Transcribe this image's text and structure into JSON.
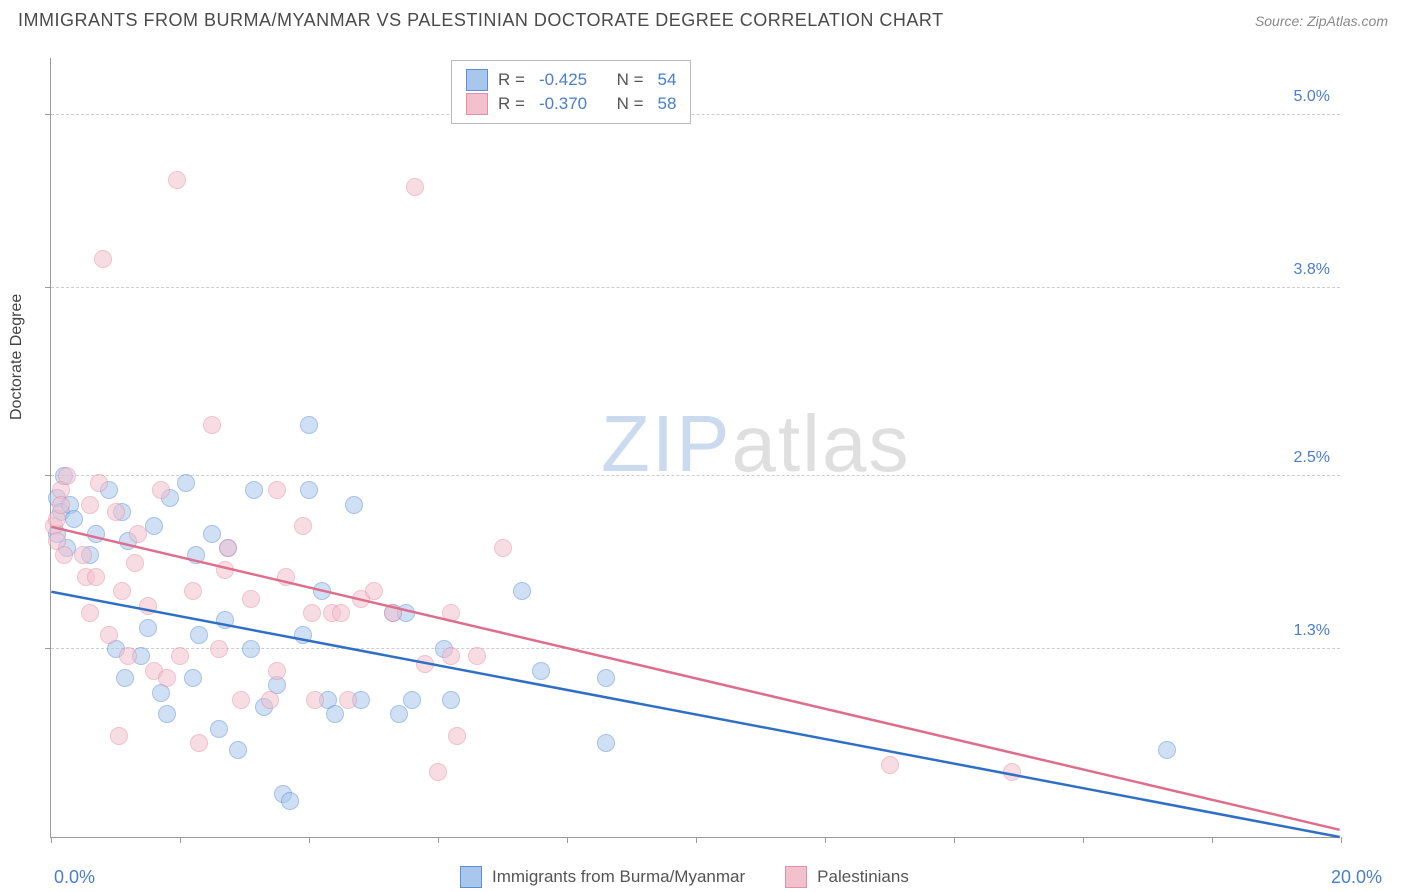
{
  "title": "IMMIGRANTS FROM BURMA/MYANMAR VS PALESTINIAN DOCTORATE DEGREE CORRELATION CHART",
  "source": "Source: ZipAtlas.com",
  "watermark_bold": "ZIP",
  "watermark_light": "atlas",
  "yaxis_title": "Doctorate Degree",
  "chart": {
    "type": "scatter",
    "xlim": [
      0,
      20
    ],
    "ylim": [
      0,
      5.4
    ],
    "x_axis_label_left": "0.0%",
    "x_axis_label_right": "20.0%",
    "x_ticks": [
      0,
      2,
      4,
      6,
      8,
      10,
      12,
      14,
      16,
      18,
      20
    ],
    "y_ticks": [
      {
        "v": 1.3,
        "label": "1.3%"
      },
      {
        "v": 2.5,
        "label": "2.5%"
      },
      {
        "v": 3.8,
        "label": "3.8%"
      },
      {
        "v": 5.0,
        "label": "5.0%"
      }
    ],
    "grid_color": "#cccccc",
    "background_color": "#ffffff",
    "marker_radius": 9,
    "marker_opacity": 0.55,
    "series": [
      {
        "name": "Immigrants from Burma/Myanmar",
        "color_fill": "#a9c7ec",
        "color_stroke": "#5b8fd6",
        "R": "-0.425",
        "N": "54",
        "trend": {
          "x1": 0,
          "y1": 1.7,
          "x2": 20,
          "y2": 0.0,
          "color": "#2f6fc4",
          "width": 2.5
        },
        "points": [
          [
            0.1,
            2.35
          ],
          [
            0.15,
            2.25
          ],
          [
            0.1,
            2.1
          ],
          [
            0.2,
            2.5
          ],
          [
            0.25,
            2.0
          ],
          [
            0.3,
            2.3
          ],
          [
            0.35,
            2.2
          ],
          [
            0.6,
            1.95
          ],
          [
            0.7,
            2.1
          ],
          [
            0.9,
            2.4
          ],
          [
            1.0,
            1.3
          ],
          [
            1.1,
            2.25
          ],
          [
            1.15,
            1.1
          ],
          [
            1.2,
            2.05
          ],
          [
            1.4,
            1.25
          ],
          [
            1.5,
            1.45
          ],
          [
            1.6,
            2.15
          ],
          [
            1.7,
            1.0
          ],
          [
            1.8,
            0.85
          ],
          [
            1.85,
            2.35
          ],
          [
            2.1,
            2.45
          ],
          [
            2.2,
            1.1
          ],
          [
            2.25,
            1.95
          ],
          [
            2.3,
            1.4
          ],
          [
            2.5,
            2.1
          ],
          [
            2.6,
            0.75
          ],
          [
            2.7,
            1.5
          ],
          [
            2.75,
            2.0
          ],
          [
            2.9,
            0.6
          ],
          [
            3.1,
            1.3
          ],
          [
            3.15,
            2.4
          ],
          [
            3.3,
            0.9
          ],
          [
            3.5,
            1.05
          ],
          [
            3.6,
            0.3
          ],
          [
            3.7,
            0.25
          ],
          [
            3.9,
            1.4
          ],
          [
            4.0,
            2.85
          ],
          [
            4.0,
            2.4
          ],
          [
            4.3,
            0.95
          ],
          [
            4.4,
            0.85
          ],
          [
            4.7,
            2.3
          ],
          [
            4.8,
            0.95
          ],
          [
            5.3,
            1.55
          ],
          [
            5.4,
            0.85
          ],
          [
            5.5,
            1.55
          ],
          [
            5.6,
            0.95
          ],
          [
            6.1,
            1.3
          ],
          [
            6.2,
            0.95
          ],
          [
            7.3,
            1.7
          ],
          [
            7.6,
            1.15
          ],
          [
            8.6,
            1.1
          ],
          [
            8.6,
            0.65
          ],
          [
            17.3,
            0.6
          ],
          [
            4.2,
            1.7
          ]
        ]
      },
      {
        "name": "Palestinians",
        "color_fill": "#f3c0ce",
        "color_stroke": "#e290a7",
        "R": "-0.370",
        "N": "58",
        "trend": {
          "x1": 0,
          "y1": 2.15,
          "x2": 20,
          "y2": 0.05,
          "color": "#de6e8c",
          "width": 2.5
        },
        "points": [
          [
            0.05,
            2.15
          ],
          [
            0.1,
            2.2
          ],
          [
            0.1,
            2.05
          ],
          [
            0.15,
            2.4
          ],
          [
            0.15,
            2.3
          ],
          [
            0.2,
            1.95
          ],
          [
            0.25,
            2.5
          ],
          [
            0.8,
            4.0
          ],
          [
            0.5,
            1.95
          ],
          [
            0.55,
            1.8
          ],
          [
            0.6,
            1.55
          ],
          [
            0.6,
            2.3
          ],
          [
            0.7,
            1.8
          ],
          [
            0.75,
            2.45
          ],
          [
            0.9,
            1.4
          ],
          [
            1.0,
            2.25
          ],
          [
            1.1,
            1.7
          ],
          [
            1.05,
            0.7
          ],
          [
            1.2,
            1.25
          ],
          [
            1.3,
            1.9
          ],
          [
            1.35,
            2.1
          ],
          [
            1.5,
            1.6
          ],
          [
            1.6,
            1.15
          ],
          [
            1.7,
            2.4
          ],
          [
            1.8,
            1.1
          ],
          [
            1.95,
            4.55
          ],
          [
            2.0,
            1.25
          ],
          [
            2.2,
            1.7
          ],
          [
            2.3,
            0.65
          ],
          [
            2.5,
            2.85
          ],
          [
            2.6,
            1.3
          ],
          [
            2.7,
            1.85
          ],
          [
            2.75,
            2.0
          ],
          [
            2.95,
            0.95
          ],
          [
            3.1,
            1.65
          ],
          [
            3.4,
            0.95
          ],
          [
            3.5,
            2.4
          ],
          [
            3.5,
            1.15
          ],
          [
            3.65,
            1.8
          ],
          [
            3.9,
            2.15
          ],
          [
            4.05,
            1.55
          ],
          [
            4.1,
            0.95
          ],
          [
            4.35,
            1.55
          ],
          [
            4.5,
            1.55
          ],
          [
            4.6,
            0.95
          ],
          [
            4.8,
            1.65
          ],
          [
            5.3,
            1.55
          ],
          [
            5.65,
            4.5
          ],
          [
            5.8,
            1.2
          ],
          [
            6.0,
            0.45
          ],
          [
            6.2,
            1.55
          ],
          [
            6.2,
            1.25
          ],
          [
            6.3,
            0.7
          ],
          [
            6.6,
            1.25
          ],
          [
            7.0,
            2.0
          ],
          [
            13.0,
            0.5
          ],
          [
            14.9,
            0.45
          ],
          [
            5.0,
            1.7
          ]
        ]
      }
    ],
    "legend_top_labels": {
      "R": "R =",
      "N": "N ="
    },
    "legend_bottom": [
      {
        "series": 0
      },
      {
        "series": 1
      }
    ]
  }
}
